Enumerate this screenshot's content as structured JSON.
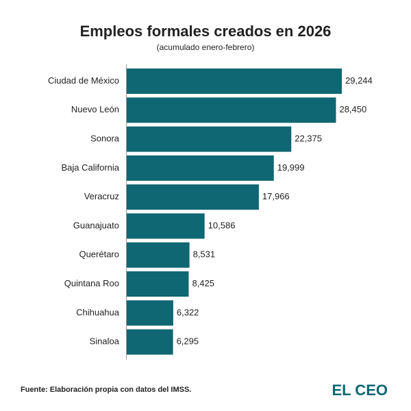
{
  "chart_data": {
    "type": "hbar",
    "title": "Empleos formales creados en 2026",
    "subtitle": "(acumulado enero-febrero)",
    "categories": [
      "Ciudad de México",
      "Nuevo León",
      "Sonora",
      "Baja California",
      "Veracruz",
      "Guanajuato",
      "Querétaro",
      "Quintana Roo",
      "Chihuahua",
      "Sinaloa"
    ],
    "values": [
      29244,
      28450,
      22375,
      19999,
      17966,
      10586,
      8531,
      8425,
      6322,
      6295
    ],
    "value_labels": [
      "29,244",
      "28,450",
      "22,375",
      "19,999",
      "17,966",
      "10,586",
      "8,531",
      "8,425",
      "6,322",
      "6,295"
    ],
    "color": "#0e6772",
    "source": "Fuente: Elaboración propia con datos del IMSS.",
    "logo": "EL CEO"
  }
}
